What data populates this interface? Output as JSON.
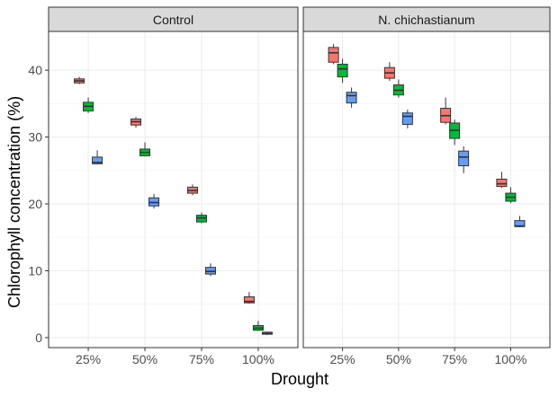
{
  "chart_data": {
    "type": "boxplot",
    "xlabel": "Drought",
    "ylabel": "Chlorophyll concentration (%)",
    "categories": [
      "25%",
      "50%",
      "75%",
      "100%"
    ],
    "yticks": [
      0,
      10,
      20,
      30,
      40
    ],
    "ylim": [
      -1.5,
      45.8
    ],
    "grid": true,
    "legend": "none",
    "group_colors": [
      "#F8766D",
      "#00BA38",
      "#619CFF"
    ],
    "panels": [
      {
        "title": "Control",
        "boxes": [
          {
            "category": "25%",
            "group": 0,
            "whisker_low": 37.9,
            "q1": 38.1,
            "median": 38.4,
            "q3": 38.7,
            "whisker_high": 39.0
          },
          {
            "category": "25%",
            "group": 1,
            "whisker_low": 33.6,
            "q1": 33.9,
            "median": 34.6,
            "q3": 35.2,
            "whisker_high": 35.9
          },
          {
            "category": "25%",
            "group": 2,
            "whisker_low": 25.9,
            "q1": 26.0,
            "median": 26.2,
            "q3": 27.0,
            "whisker_high": 28.0
          },
          {
            "category": "50%",
            "group": 0,
            "whisker_low": 31.4,
            "q1": 31.8,
            "median": 32.3,
            "q3": 32.7,
            "whisker_high": 33.0
          },
          {
            "category": "50%",
            "group": 1,
            "whisker_low": 27.1,
            "q1": 27.2,
            "median": 27.7,
            "q3": 28.2,
            "whisker_high": 29.2
          },
          {
            "category": "50%",
            "group": 2,
            "whisker_low": 19.3,
            "q1": 19.7,
            "median": 20.2,
            "q3": 20.9,
            "whisker_high": 21.5
          },
          {
            "category": "75%",
            "group": 0,
            "whisker_low": 21.3,
            "q1": 21.6,
            "median": 22.0,
            "q3": 22.5,
            "whisker_high": 22.9
          },
          {
            "category": "75%",
            "group": 1,
            "whisker_low": 17.1,
            "q1": 17.3,
            "median": 17.9,
            "q3": 18.3,
            "whisker_high": 18.7
          },
          {
            "category": "75%",
            "group": 2,
            "whisker_low": 9.2,
            "q1": 9.5,
            "median": 9.9,
            "q3": 10.5,
            "whisker_high": 11.1
          },
          {
            "category": "100%",
            "group": 0,
            "whisker_low": 5.1,
            "q1": 5.2,
            "median": 5.4,
            "q3": 6.1,
            "whisker_high": 6.8
          },
          {
            "category": "100%",
            "group": 1,
            "whisker_low": 1.0,
            "q1": 1.1,
            "median": 1.4,
            "q3": 1.8,
            "whisker_high": 2.5
          },
          {
            "category": "100%",
            "group": 2,
            "whisker_low": 0.4,
            "q1": 0.5,
            "median": 0.6,
            "q3": 0.8,
            "whisker_high": 0.9
          }
        ]
      },
      {
        "title": "N. chichastianum",
        "boxes": [
          {
            "category": "25%",
            "group": 0,
            "whisker_low": 40.9,
            "q1": 41.2,
            "median": 42.6,
            "q3": 43.4,
            "whisker_high": 43.9
          },
          {
            "category": "25%",
            "group": 1,
            "whisker_low": 38.1,
            "q1": 39.0,
            "median": 40.2,
            "q3": 40.9,
            "whisker_high": 41.7
          },
          {
            "category": "25%",
            "group": 2,
            "whisker_low": 34.4,
            "q1": 35.1,
            "median": 36.2,
            "q3": 36.7,
            "whisker_high": 37.4
          },
          {
            "category": "50%",
            "group": 0,
            "whisker_low": 38.4,
            "q1": 38.8,
            "median": 39.6,
            "q3": 40.4,
            "whisker_high": 41.2
          },
          {
            "category": "50%",
            "group": 1,
            "whisker_low": 35.9,
            "q1": 36.3,
            "median": 37.0,
            "q3": 37.8,
            "whisker_high": 38.6
          },
          {
            "category": "50%",
            "group": 2,
            "whisker_low": 31.3,
            "q1": 31.9,
            "median": 33.1,
            "q3": 33.6,
            "whisker_high": 34.1
          },
          {
            "category": "75%",
            "group": 0,
            "whisker_low": 31.9,
            "q1": 32.2,
            "median": 33.2,
            "q3": 34.3,
            "whisker_high": 35.9
          },
          {
            "category": "75%",
            "group": 1,
            "whisker_low": 28.8,
            "q1": 29.8,
            "median": 31.0,
            "q3": 32.1,
            "whisker_high": 32.6
          },
          {
            "category": "75%",
            "group": 2,
            "whisker_low": 24.6,
            "q1": 25.7,
            "median": 27.0,
            "q3": 27.9,
            "whisker_high": 28.6
          },
          {
            "category": "100%",
            "group": 0,
            "whisker_low": 22.4,
            "q1": 22.6,
            "median": 23.0,
            "q3": 23.7,
            "whisker_high": 24.8
          },
          {
            "category": "100%",
            "group": 1,
            "whisker_low": 20.1,
            "q1": 20.4,
            "median": 21.0,
            "q3": 21.6,
            "whisker_high": 22.5
          },
          {
            "category": "100%",
            "group": 2,
            "whisker_low": 16.5,
            "q1": 16.6,
            "median": 16.7,
            "q3": 17.5,
            "whisker_high": 18.2
          }
        ]
      }
    ]
  }
}
